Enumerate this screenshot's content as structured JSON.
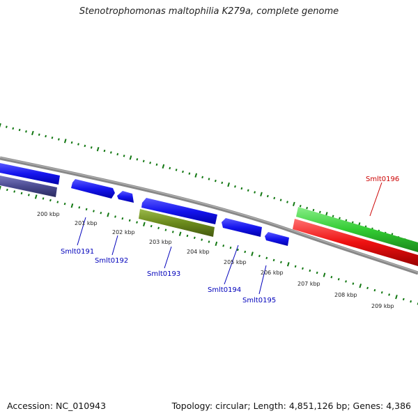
{
  "title": "Stenotrophomonas maltophilia K279a, complete genome",
  "footer": {
    "accession": "Accession: NC_010943",
    "topology": "Topology: circular; Length: 4,851,126 bp; Genes: 4,386"
  },
  "kbp_labels": [
    "200 kbp",
    "201 kbp",
    "202 kbp",
    "203 kbp",
    "204 kbp",
    "205 kbp",
    "206 kbp",
    "207 kbp",
    "208 kbp",
    "209 kbp"
  ],
  "genes": [
    {
      "name": "Smlt0191",
      "strand": "-",
      "color": "#0000ee"
    },
    {
      "name": "Smlt0192",
      "strand": "-",
      "color": "#0000ee"
    },
    {
      "name": "Smlt0193",
      "strand": "-",
      "color": "#6b7f1f"
    },
    {
      "name": "Smlt0194",
      "strand": "-",
      "color": "#0000ee"
    },
    {
      "name": "Smlt0195",
      "strand": "-",
      "color": "#0000ee"
    },
    {
      "name": "Smlt0196",
      "strand": "+",
      "color": "#dd0000"
    }
  ],
  "colors": {
    "backbone": "#888888",
    "tick": "#117711",
    "gene_blue": "#1515ee",
    "gene_olive": "#6b8a1c",
    "gene_navy": "#4a4a90",
    "gene_green": "#33cc33",
    "gene_red": "#ee1111",
    "label_blue": "#0000bb",
    "label_red": "#cc0000"
  }
}
